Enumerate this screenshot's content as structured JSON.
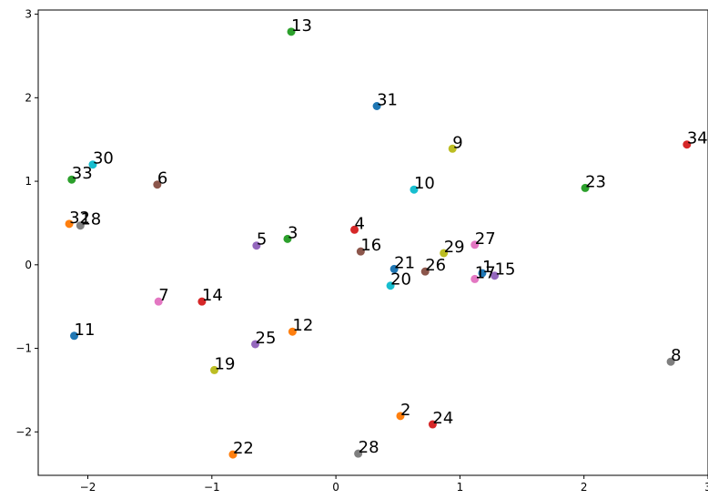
{
  "chart_data": {
    "type": "scatter",
    "title": "",
    "xlabel": "",
    "ylabel": "",
    "xlim": [
      -2.4,
      3.0
    ],
    "ylim": [
      -2.52,
      3.05
    ],
    "xticks": [
      -2,
      -1,
      0,
      1,
      2,
      3
    ],
    "yticks": [
      -2,
      -1,
      0,
      1,
      2,
      3
    ],
    "xtick_labels": [
      "−2",
      "−1",
      "0",
      "1",
      "2",
      "3"
    ],
    "ytick_labels": [
      "−2",
      "−1",
      "0",
      "1",
      "2",
      "3"
    ],
    "grid": false,
    "legend": "none",
    "points": [
      {
        "label": "1",
        "x": 1.18,
        "y": -0.1,
        "color": "#1f77b4"
      },
      {
        "label": "2",
        "x": 0.52,
        "y": -1.81,
        "color": "#ff7f0e"
      },
      {
        "label": "3",
        "x": -0.39,
        "y": 0.31,
        "color": "#2ca02c"
      },
      {
        "label": "4",
        "x": 0.15,
        "y": 0.42,
        "color": "#d62728"
      },
      {
        "label": "5",
        "x": -0.64,
        "y": 0.23,
        "color": "#9467bd"
      },
      {
        "label": "6",
        "x": -1.44,
        "y": 0.96,
        "color": "#8c564b"
      },
      {
        "label": "7",
        "x": -1.43,
        "y": -0.44,
        "color": "#e377c2"
      },
      {
        "label": "8",
        "x": 2.7,
        "y": -1.16,
        "color": "#7f7f7f"
      },
      {
        "label": "9",
        "x": 0.94,
        "y": 1.39,
        "color": "#bcbd22"
      },
      {
        "label": "10",
        "x": 0.63,
        "y": 0.9,
        "color": "#17becf"
      },
      {
        "label": "11",
        "x": -2.11,
        "y": -0.85,
        "color": "#1f77b4"
      },
      {
        "label": "12",
        "x": -0.35,
        "y": -0.8,
        "color": "#ff7f0e"
      },
      {
        "label": "13",
        "x": -0.36,
        "y": 2.79,
        "color": "#2ca02c"
      },
      {
        "label": "14",
        "x": -1.08,
        "y": -0.44,
        "color": "#d62728"
      },
      {
        "label": "15",
        "x": 1.28,
        "y": -0.13,
        "color": "#9467bd"
      },
      {
        "label": "16",
        "x": 0.2,
        "y": 0.16,
        "color": "#8c564b"
      },
      {
        "label": "17",
        "x": 1.12,
        "y": -0.17,
        "color": "#e377c2"
      },
      {
        "label": "18",
        "x": -2.06,
        "y": 0.47,
        "color": "#7f7f7f"
      },
      {
        "label": "19",
        "x": -0.98,
        "y": -1.26,
        "color": "#bcbd22"
      },
      {
        "label": "20",
        "x": 0.44,
        "y": -0.25,
        "color": "#17becf"
      },
      {
        "label": "21",
        "x": 0.47,
        "y": -0.05,
        "color": "#1f77b4"
      },
      {
        "label": "22",
        "x": -0.83,
        "y": -2.27,
        "color": "#ff7f0e"
      },
      {
        "label": "23",
        "x": 2.01,
        "y": 0.92,
        "color": "#2ca02c"
      },
      {
        "label": "24",
        "x": 0.78,
        "y": -1.91,
        "color": "#d62728"
      },
      {
        "label": "25",
        "x": -0.65,
        "y": -0.95,
        "color": "#9467bd"
      },
      {
        "label": "26",
        "x": 0.72,
        "y": -0.08,
        "color": "#8c564b"
      },
      {
        "label": "27",
        "x": 1.12,
        "y": 0.24,
        "color": "#e377c2"
      },
      {
        "label": "28",
        "x": 0.18,
        "y": -2.26,
        "color": "#7f7f7f"
      },
      {
        "label": "29",
        "x": 0.87,
        "y": 0.14,
        "color": "#bcbd22"
      },
      {
        "label": "30",
        "x": -1.96,
        "y": 1.2,
        "color": "#17becf"
      },
      {
        "label": "31",
        "x": 0.33,
        "y": 1.9,
        "color": "#1f77b4"
      },
      {
        "label": "32",
        "x": -2.15,
        "y": 0.49,
        "color": "#ff7f0e"
      },
      {
        "label": "33",
        "x": -2.13,
        "y": 1.02,
        "color": "#2ca02c"
      },
      {
        "label": "34",
        "x": 2.83,
        "y": 1.44,
        "color": "#d62728"
      }
    ]
  }
}
